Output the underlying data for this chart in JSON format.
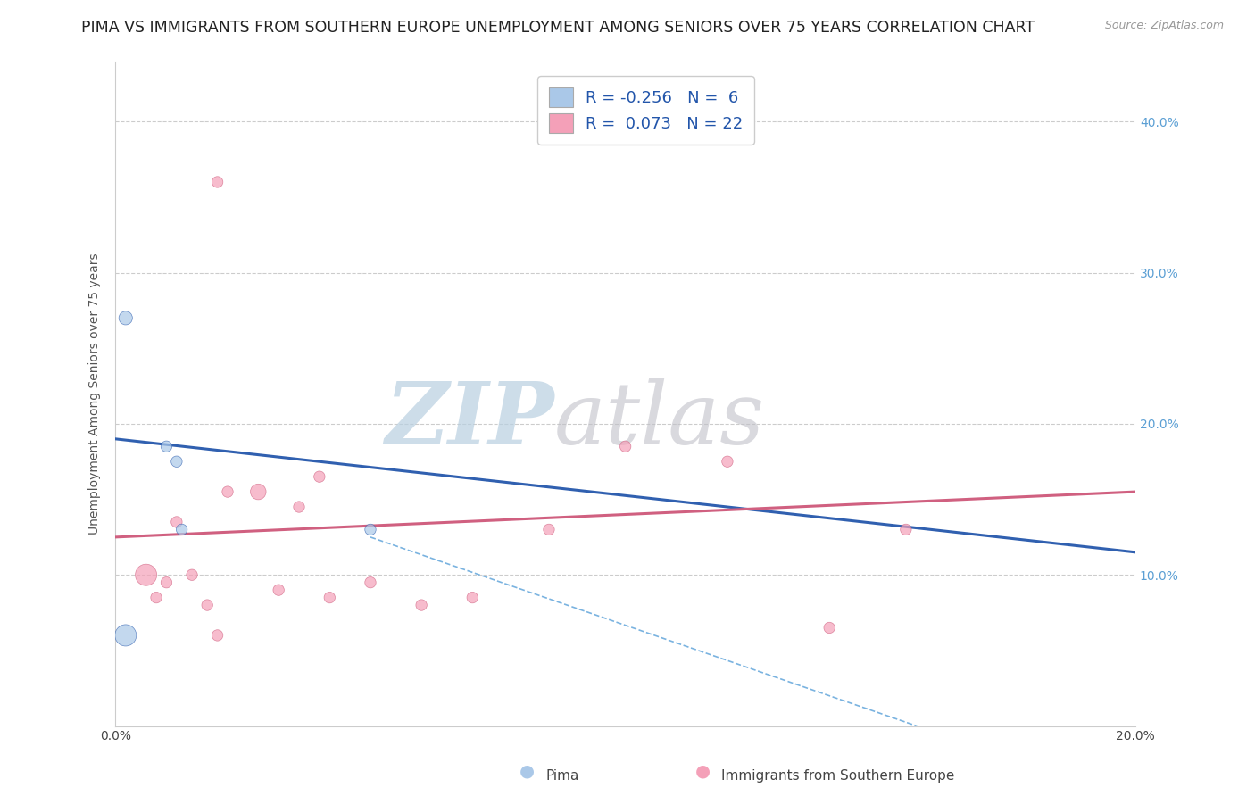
{
  "title": "PIMA VS IMMIGRANTS FROM SOUTHERN EUROPE UNEMPLOYMENT AMONG SENIORS OVER 75 YEARS CORRELATION CHART",
  "source_text": "Source: ZipAtlas.com",
  "ylabel": "Unemployment Among Seniors over 75 years",
  "xlim": [
    0.0,
    0.2
  ],
  "ylim": [
    0.0,
    0.44
  ],
  "pima_color": "#aac8e8",
  "pima_color_line": "#3060b0",
  "immigrants_color": "#f4a0b8",
  "immigrants_color_line": "#d06080",
  "pima_R": -0.256,
  "pima_N": 6,
  "immigrants_R": 0.073,
  "immigrants_N": 22,
  "background_color": "#ffffff",
  "grid_color": "#cccccc",
  "watermark_zip": "ZIP",
  "watermark_atlas": "atlas",
  "watermark_color_zip": "#c0d0e8",
  "watermark_color_atlas": "#c8c8c8",
  "pima_scatter_x": [
    0.002,
    0.01,
    0.012,
    0.013,
    0.05,
    0.002
  ],
  "pima_scatter_y": [
    0.27,
    0.185,
    0.175,
    0.13,
    0.13,
    0.06
  ],
  "pima_scatter_size": [
    120,
    80,
    80,
    80,
    80,
    300
  ],
  "immigrants_scatter_x": [
    0.02,
    0.006,
    0.008,
    0.01,
    0.012,
    0.015,
    0.018,
    0.02,
    0.022,
    0.028,
    0.032,
    0.036,
    0.04,
    0.042,
    0.05,
    0.06,
    0.07,
    0.085,
    0.1,
    0.12,
    0.14,
    0.155
  ],
  "immigrants_scatter_y": [
    0.36,
    0.1,
    0.085,
    0.095,
    0.135,
    0.1,
    0.08,
    0.06,
    0.155,
    0.155,
    0.09,
    0.145,
    0.165,
    0.085,
    0.095,
    0.08,
    0.085,
    0.13,
    0.185,
    0.175,
    0.065,
    0.13
  ],
  "immigrants_scatter_size": [
    80,
    300,
    80,
    80,
    80,
    80,
    80,
    80,
    80,
    160,
    80,
    80,
    80,
    80,
    80,
    80,
    80,
    80,
    80,
    80,
    80,
    80
  ],
  "pima_line_x": [
    0.0,
    0.2
  ],
  "pima_line_y": [
    0.19,
    0.115
  ],
  "immigrants_line_x": [
    0.0,
    0.2
  ],
  "immigrants_line_y": [
    0.125,
    0.155
  ],
  "dashed_line_x": [
    0.05,
    0.2
  ],
  "dashed_line_y": [
    0.125,
    -0.05
  ],
  "title_fontsize": 12.5,
  "axis_label_fontsize": 10,
  "tick_fontsize": 10,
  "legend_fontsize": 13
}
